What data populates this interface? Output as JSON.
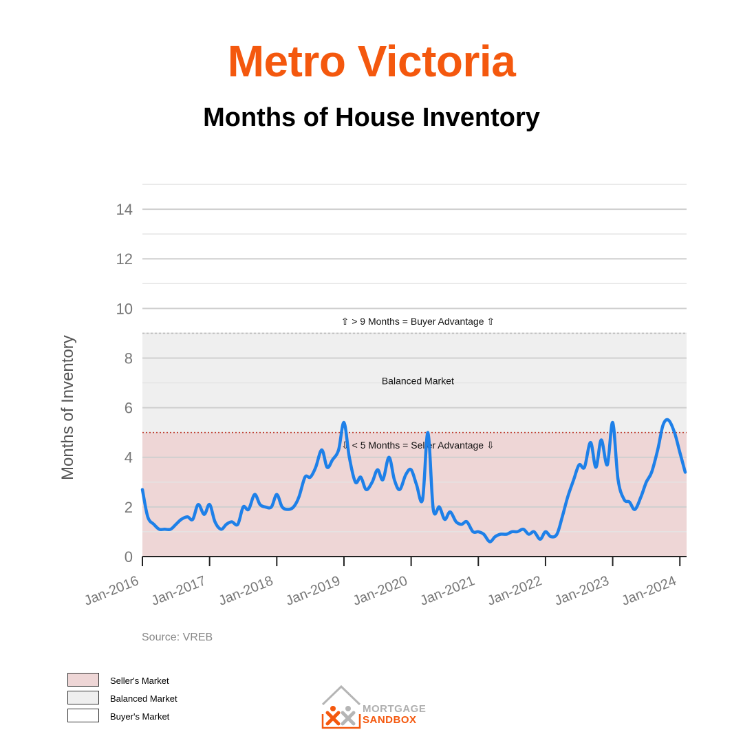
{
  "header": {
    "title": "Metro Victoria",
    "subtitle": "Months of House Inventory"
  },
  "source": "Source: VREB",
  "legend": [
    {
      "label": "Seller's Market",
      "color": "#eed6d6"
    },
    {
      "label": "Balanced Market",
      "color": "#efefef"
    },
    {
      "label": "Buyer's Market",
      "color": "#ffffff"
    }
  ],
  "logo": {
    "line1": "MORTGAGE",
    "line2": "SANDBOX"
  },
  "chart_data": {
    "type": "line",
    "title": "",
    "xlabel": "",
    "ylabel": "Months of Inventory",
    "ylim": [
      0,
      15
    ],
    "xlim": [
      2016.0,
      2024.1
    ],
    "grid": true,
    "yticks": [
      0,
      2,
      4,
      6,
      8,
      10,
      12,
      14
    ],
    "xticks": [
      {
        "label": "Jan-2016",
        "x": 2016
      },
      {
        "label": "Jan-2017",
        "x": 2017
      },
      {
        "label": "Jan-2018",
        "x": 2018
      },
      {
        "label": "Jan-2019",
        "x": 2019
      },
      {
        "label": "Jan-2020",
        "x": 2020
      },
      {
        "label": "Jan-2021",
        "x": 2021
      },
      {
        "label": "Jan-2022",
        "x": 2022
      },
      {
        "label": "Jan-2023",
        "x": 2023
      },
      {
        "label": "Jan-2024",
        "x": 2024
      }
    ],
    "bands": [
      {
        "name": "Seller's Market",
        "from": 0,
        "to": 5,
        "color": "#eed6d6"
      },
      {
        "name": "Balanced Market",
        "from": 5,
        "to": 9,
        "color": "#efefef"
      }
    ],
    "thresholds": [
      {
        "value": 5,
        "color": "#c0392b",
        "style": "dotted"
      },
      {
        "value": 9,
        "color": "#bbbbbb",
        "style": "dashed"
      }
    ],
    "annotations": [
      {
        "text": "⇧ > 9 Months = Buyer Advantage ⇧",
        "x": 2020.1,
        "y": 9.35
      },
      {
        "text": "Balanced Market",
        "x": 2020.1,
        "y": 6.95
      },
      {
        "text": "⇩ < 5 Months = Seller Advantage ⇩",
        "x": 2020.1,
        "y": 4.35
      }
    ],
    "series": [
      {
        "color": "#1e80e8",
        "x": [
          2016.0,
          2016.08,
          2016.17,
          2016.25,
          2016.33,
          2016.42,
          2016.5,
          2016.58,
          2016.67,
          2016.75,
          2016.83,
          2016.92,
          2017.0,
          2017.08,
          2017.17,
          2017.25,
          2017.33,
          2017.42,
          2017.5,
          2017.58,
          2017.67,
          2017.75,
          2017.83,
          2017.92,
          2018.0,
          2018.08,
          2018.17,
          2018.25,
          2018.33,
          2018.42,
          2018.5,
          2018.58,
          2018.67,
          2018.75,
          2018.83,
          2018.92,
          2019.0,
          2019.08,
          2019.17,
          2019.25,
          2019.33,
          2019.42,
          2019.5,
          2019.58,
          2019.67,
          2019.75,
          2019.83,
          2019.92,
          2020.0,
          2020.08,
          2020.17,
          2020.25,
          2020.33,
          2020.42,
          2020.5,
          2020.58,
          2020.67,
          2020.75,
          2020.83,
          2020.92,
          2021.0,
          2021.08,
          2021.17,
          2021.25,
          2021.33,
          2021.42,
          2021.5,
          2021.58,
          2021.67,
          2021.75,
          2021.83,
          2021.92,
          2022.0,
          2022.08,
          2022.17,
          2022.25,
          2022.33,
          2022.42,
          2022.5,
          2022.58,
          2022.67,
          2022.75,
          2022.83,
          2022.92,
          2023.0,
          2023.08,
          2023.17,
          2023.25,
          2023.33,
          2023.42,
          2023.5,
          2023.58,
          2023.67,
          2023.75,
          2023.83,
          2023.92,
          2024.0,
          2024.08
        ],
        "y": [
          2.7,
          1.6,
          1.3,
          1.1,
          1.1,
          1.1,
          1.3,
          1.5,
          1.6,
          1.5,
          2.1,
          1.7,
          2.1,
          1.4,
          1.1,
          1.3,
          1.4,
          1.3,
          2.0,
          1.9,
          2.5,
          2.1,
          2.0,
          2.0,
          2.5,
          2.0,
          1.9,
          2.0,
          2.4,
          3.2,
          3.2,
          3.6,
          4.3,
          3.6,
          3.9,
          4.3,
          5.4,
          4.0,
          3.0,
          3.2,
          2.7,
          3.0,
          3.5,
          3.1,
          4.0,
          3.1,
          2.7,
          3.3,
          3.5,
          2.9,
          2.3,
          5.0,
          1.9,
          2.0,
          1.5,
          1.8,
          1.4,
          1.3,
          1.4,
          1.0,
          1.0,
          0.9,
          0.6,
          0.8,
          0.9,
          0.9,
          1.0,
          1.0,
          1.1,
          0.9,
          1.0,
          0.7,
          1.0,
          0.8,
          0.9,
          1.6,
          2.4,
          3.1,
          3.7,
          3.6,
          4.6,
          3.6,
          4.7,
          3.7,
          5.4,
          3.1,
          2.3,
          2.2,
          1.9,
          2.4,
          3.0,
          3.4,
          4.3,
          5.3,
          5.5,
          5.0,
          4.2,
          3.4
        ]
      }
    ]
  }
}
